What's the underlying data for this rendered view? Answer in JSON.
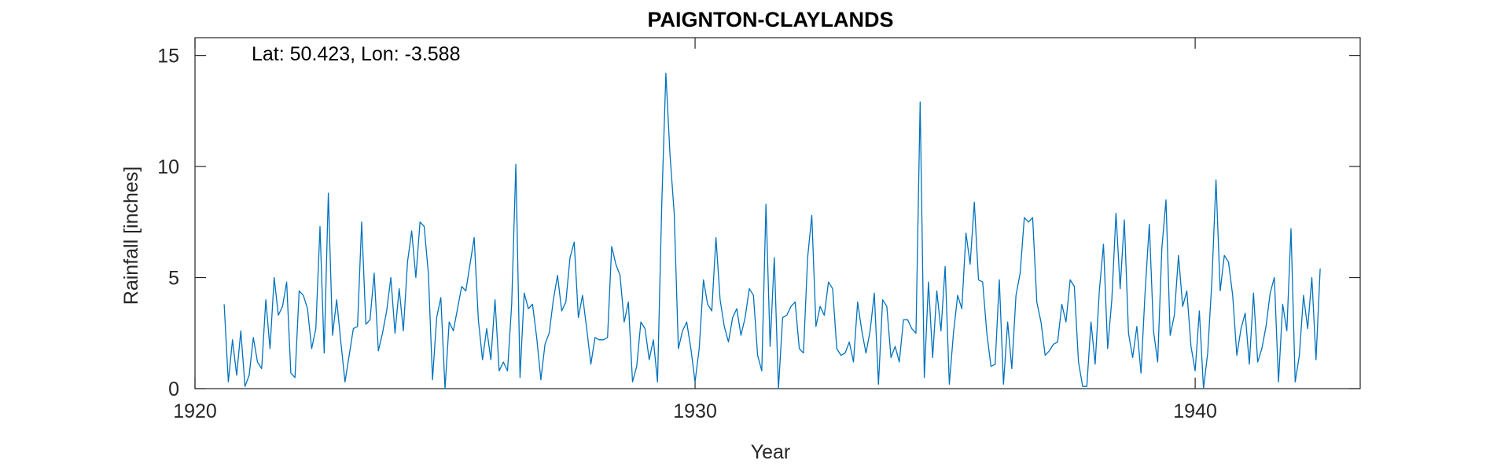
{
  "chart_data": {
    "type": "line",
    "title": "PAIGNTON-CLAYLANDS",
    "annotation": "Lat: 50.423, Lon: -3.588",
    "xlabel": "Year",
    "ylabel": "Rainfall [inches]",
    "xlim": [
      1920,
      1943.3
    ],
    "ylim": [
      0,
      15.8
    ],
    "xticks": [
      1920,
      1930,
      1940
    ],
    "yticks": [
      0,
      5,
      10,
      15
    ],
    "grid": false,
    "series_color": "#0072BD",
    "x_start": 1920.5833,
    "x_step_months": 1,
    "series": [
      {
        "values": [
          3.8,
          0.3,
          2.2,
          0.6,
          2.6,
          0.1,
          0.6,
          2.3,
          1.2,
          0.9,
          4.0,
          1.8,
          5.0,
          3.3,
          3.7,
          4.8,
          0.7,
          0.5,
          4.4,
          4.2,
          3.6,
          1.8,
          2.7,
          7.3,
          1.6,
          8.8,
          2.4,
          4.0,
          2.1,
          0.3,
          1.5,
          2.7,
          2.8,
          7.5,
          2.9,
          3.1,
          5.2,
          1.7,
          2.5,
          3.5,
          5.0,
          2.5,
          4.5,
          2.6,
          5.7,
          7.1,
          5.0,
          7.5,
          7.3,
          5.2,
          0.4,
          3.2,
          4.1,
          0.0,
          3.0,
          2.6,
          3.6,
          4.6,
          4.4,
          5.6,
          6.8,
          3.1,
          1.3,
          2.7,
          1.3,
          4.0,
          0.8,
          1.2,
          0.8,
          3.8,
          10.1,
          0.5,
          4.3,
          3.6,
          3.8,
          2.3,
          0.4,
          2.0,
          2.5,
          4.0,
          5.1,
          3.5,
          3.9,
          5.9,
          6.6,
          3.2,
          4.2,
          2.7,
          1.1,
          2.3,
          2.2,
          2.2,
          2.3,
          6.4,
          5.6,
          5.1,
          3.0,
          3.9,
          0.3,
          1.0,
          3.0,
          2.7,
          1.3,
          2.2,
          0.3,
          8.2,
          14.2,
          10.5,
          7.9,
          1.8,
          2.6,
          3.0,
          1.8,
          0.3,
          1.8,
          4.9,
          3.8,
          3.5,
          6.8,
          4.0,
          2.8,
          2.1,
          3.2,
          3.6,
          2.4,
          3.2,
          4.5,
          4.2,
          1.5,
          0.8,
          8.3,
          1.9,
          5.9,
          0.0,
          3.2,
          3.3,
          3.7,
          3.9,
          1.8,
          1.6,
          5.9,
          7.8,
          2.8,
          3.7,
          3.3,
          4.8,
          4.5,
          1.8,
          1.5,
          1.6,
          2.1,
          1.2,
          3.9,
          2.6,
          1.6,
          2.6,
          4.3,
          0.2,
          4.0,
          3.7,
          1.4,
          1.9,
          1.2,
          3.1,
          3.1,
          2.7,
          2.5,
          12.9,
          0.5,
          4.8,
          1.4,
          4.4,
          2.6,
          5.5,
          0.2,
          2.5,
          4.2,
          3.6,
          7.0,
          5.6,
          8.4,
          4.9,
          4.8,
          2.5,
          1.0,
          1.1,
          4.9,
          0.2,
          3.0,
          0.9,
          4.2,
          5.2,
          7.7,
          7.5,
          7.7,
          3.9,
          3.0,
          1.5,
          1.7,
          2.0,
          2.1,
          3.8,
          3.0,
          4.9,
          4.6,
          1.2,
          0.1,
          0.1,
          3.0,
          1.1,
          4.4,
          6.5,
          1.8,
          4.0,
          7.9,
          4.5,
          7.6,
          2.5,
          1.4,
          2.8,
          0.7,
          4.4,
          7.4,
          2.6,
          1.2,
          6.3,
          8.5,
          2.4,
          3.3,
          6.0,
          3.7,
          4.4,
          1.9,
          0.8,
          3.5,
          0.0,
          1.6,
          4.8,
          9.4,
          4.4,
          6.0,
          5.7,
          4.2,
          1.5,
          2.7,
          3.4,
          1.1,
          4.3,
          1.2,
          1.8,
          2.8,
          4.3,
          5.0,
          0.3,
          3.8,
          2.6,
          7.2,
          0.3,
          1.5,
          4.2,
          2.7,
          5.0,
          1.3,
          5.4
        ]
      }
    ]
  }
}
